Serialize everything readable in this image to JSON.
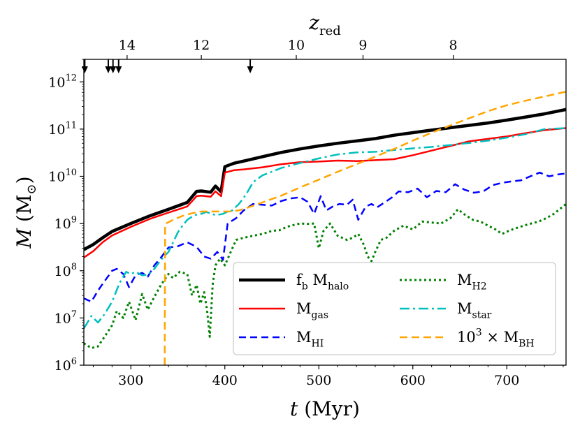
{
  "chart_data": {
    "type": "line",
    "xlabel": "t (Myr)",
    "ylabel": "M (M⊙)",
    "top_xlabel": "z_red",
    "xlim": [
      250,
      763
    ],
    "ylog": true,
    "ylim": [
      1000000.0,
      3000000000000.0
    ],
    "x_ticks": [
      300,
      400,
      500,
      600,
      700
    ],
    "x_tick_labels": [
      "300",
      "400",
      "500",
      "600",
      "700"
    ],
    "y_ticks": [
      1000000.0,
      10000000.0,
      100000000.0,
      1000000000.0,
      10000000000.0,
      100000000000.0,
      1000000000000.0
    ],
    "y_tick_labels": [
      "10^6",
      "10^7",
      "10^8",
      "10^9",
      "10^10",
      "10^11",
      "10^12"
    ],
    "top_ticks": [
      {
        "t": 296,
        "label": "14"
      },
      {
        "t": 375,
        "label": "12"
      },
      {
        "t": 476,
        "label": "10"
      },
      {
        "t": 547,
        "label": "9"
      },
      {
        "t": 643,
        "label": "8"
      }
    ],
    "arrow_times": [
      251,
      276,
      281,
      287,
      427
    ],
    "legend_position": "lower-right",
    "series": [
      {
        "name": "fb_M_halo",
        "legend": "f_b M_halo",
        "color": "#000000",
        "dash": "solid",
        "width": 4.5,
        "x": [
          250,
          260,
          270,
          280,
          300,
          320,
          340,
          360,
          370,
          375,
          385,
          390,
          396,
          400,
          410,
          420,
          440,
          460,
          480,
          500,
          520,
          540,
          560,
          580,
          600,
          620,
          640,
          660,
          680,
          700,
          720,
          740,
          763
        ],
        "y": [
          280000000.0,
          360000000.0,
          500000000.0,
          680000000.0,
          1000000000.0,
          1450000000.0,
          2000000000.0,
          2800000000.0,
          4800000000.0,
          4900000000.0,
          4600000000.0,
          6200000000.0,
          4700000000.0,
          16000000000.0,
          19000000000.0,
          21000000000.0,
          26000000000.0,
          32000000000.0,
          38000000000.0,
          44000000000.0,
          50000000000.0,
          56000000000.0,
          63000000000.0,
          74000000000.0,
          84000000000.0,
          95000000000.0,
          107000000000.0,
          120000000000.0,
          135000000000.0,
          155000000000.0,
          180000000000.0,
          210000000000.0,
          260000000000.0
        ]
      },
      {
        "name": "M_gas",
        "legend": "M_gas",
        "color": "#ff0000",
        "dash": "solid",
        "width": 2.5,
        "x": [
          250,
          260,
          270,
          280,
          300,
          320,
          340,
          360,
          370,
          375,
          385,
          390,
          396,
          400,
          410,
          420,
          440,
          460,
          480,
          500,
          520,
          540,
          560,
          580,
          600,
          620,
          640,
          660,
          680,
          700,
          720,
          740,
          763
        ],
        "y": [
          190000000.0,
          260000000.0,
          400000000.0,
          560000000.0,
          850000000.0,
          1250000000.0,
          1700000000.0,
          2300000000.0,
          3800000000.0,
          3900000000.0,
          3700000000.0,
          4800000000.0,
          3800000000.0,
          12000000000.0,
          13500000000.0,
          14000000000.0,
          15500000000.0,
          18000000000.0,
          20000000000.0,
          20500000000.0,
          21500000000.0,
          21000000000.0,
          22000000000.0,
          23000000000.0,
          28000000000.0,
          35000000000.0,
          44000000000.0,
          55000000000.0,
          62000000000.0,
          70000000000.0,
          82000000000.0,
          95000000000.0,
          105000000000.0
        ]
      },
      {
        "name": "M_HI",
        "legend": "M_HI",
        "color": "#0000ff",
        "dash": "10,6",
        "width": 2.5,
        "x": [
          250,
          258,
          265,
          272,
          280,
          285,
          292,
          298,
          305,
          312,
          318,
          325,
          332,
          340,
          350,
          360,
          370,
          378,
          385,
          392,
          398,
          403,
          412,
          420,
          430,
          440,
          450,
          460,
          470,
          480,
          488,
          495,
          502,
          508,
          515,
          522,
          530,
          536,
          542,
          550,
          556,
          562,
          570,
          578,
          585,
          595,
          605,
          615,
          625,
          635,
          645,
          655,
          665,
          675,
          685,
          695,
          705,
          715,
          725,
          735,
          745,
          755,
          763
        ],
        "y": [
          26000000.0,
          22000000.0,
          38000000.0,
          60000000.0,
          100000000.0,
          110000000.0,
          85000000.0,
          45000000.0,
          80000000.0,
          90000000.0,
          75000000.0,
          130000000.0,
          190000000.0,
          310000000.0,
          330000000.0,
          400000000.0,
          320000000.0,
          200000000.0,
          180000000.0,
          250000000.0,
          170000000.0,
          1000000000.0,
          1300000000.0,
          1900000000.0,
          2600000000.0,
          2500000000.0,
          2400000000.0,
          3000000000.0,
          3400000000.0,
          3600000000.0,
          2900000000.0,
          1600000000.0,
          3800000000.0,
          1900000000.0,
          2300000000.0,
          2600000000.0,
          2500000000.0,
          3200000000.0,
          1200000000.0,
          2300000000.0,
          2600000000.0,
          2200000000.0,
          2800000000.0,
          3600000000.0,
          4800000000.0,
          4600000000.0,
          5500000000.0,
          3600000000.0,
          4900000000.0,
          4600000000.0,
          6800000000.0,
          5200000000.0,
          4500000000.0,
          4800000000.0,
          6500000000.0,
          7300000000.0,
          7800000000.0,
          8200000000.0,
          10000000000.0,
          12000000000.0,
          10000000000.0,
          11000000000.0,
          11500000000.0
        ]
      },
      {
        "name": "M_H2",
        "legend": "M_H2",
        "color": "#008000",
        "dash": "3,4",
        "width": 3,
        "x": [
          250,
          258,
          265,
          272,
          280,
          285,
          292,
          298,
          305,
          312,
          318,
          325,
          332,
          340,
          345,
          352,
          360,
          365,
          370,
          374,
          378,
          381,
          384,
          387,
          390,
          395,
          400,
          405,
          412,
          420,
          430,
          440,
          450,
          458,
          466,
          475,
          480,
          488,
          495,
          500,
          505,
          512,
          520,
          530,
          536,
          542,
          548,
          552,
          556,
          560,
          566,
          572,
          580,
          590,
          600,
          610,
          620,
          630,
          640,
          648,
          656,
          664,
          672,
          680,
          688,
          695,
          702,
          710,
          718,
          726,
          734,
          742,
          750,
          756,
          763
        ],
        "y": [
          2900000.0,
          2300000.0,
          2500000.0,
          4000000.0,
          7000000.0,
          14000000.0,
          10000000.0,
          22000000.0,
          9000000.0,
          32000000.0,
          15000000.0,
          28000000.0,
          50000000.0,
          85000000.0,
          70000000.0,
          95000000.0,
          85000000.0,
          30000000.0,
          50000000.0,
          20000000.0,
          35000000.0,
          15000000.0,
          4000000.0,
          50000000.0,
          130000000.0,
          180000000.0,
          130000000.0,
          220000000.0,
          450000000.0,
          500000000.0,
          550000000.0,
          600000000.0,
          700000000.0,
          720000000.0,
          850000000.0,
          950000000.0,
          1000000000.0,
          980000000.0,
          1000000000.0,
          300000000.0,
          700000000.0,
          1000000000.0,
          550000000.0,
          450000000.0,
          500000000.0,
          600000000.0,
          350000000.0,
          200000000.0,
          160000000.0,
          250000000.0,
          450000000.0,
          500000000.0,
          700000000.0,
          900000000.0,
          750000000.0,
          1100000000.0,
          1050000000.0,
          1000000000.0,
          1300000000.0,
          2000000000.0,
          1500000000.0,
          1200000000.0,
          1100000000.0,
          900000000.0,
          750000000.0,
          600000000.0,
          700000000.0,
          800000000.0,
          900000000.0,
          1000000000.0,
          1100000000.0,
          1300000000.0,
          1600000000.0,
          2000000000.0,
          2600000000.0
        ]
      },
      {
        "name": "M_star",
        "legend": "M_star",
        "color": "#00bfbf",
        "dash": "14,5,3,5",
        "width": 2.5,
        "x": [
          250,
          258,
          265,
          272,
          280,
          288,
          295,
          300,
          305,
          312,
          318,
          325,
          332,
          340,
          345,
          350,
          355,
          360,
          365,
          370,
          375,
          380,
          385,
          390,
          394,
          398,
          402,
          408,
          415,
          420,
          425,
          430,
          440,
          450,
          460,
          475,
          500,
          520,
          540,
          560,
          580,
          600,
          620,
          640,
          660,
          680,
          700,
          720,
          740,
          763
        ],
        "y": [
          6000000.0,
          11000000.0,
          8000000.0,
          12000000.0,
          22000000.0,
          55000000.0,
          95000000.0,
          85000000.0,
          95000000.0,
          80000000.0,
          82000000.0,
          110000000.0,
          170000000.0,
          250000000.0,
          400000000.0,
          650000000.0,
          900000000.0,
          1200000000.0,
          1400000000.0,
          1550000000.0,
          1600000000.0,
          1750000000.0,
          1650000000.0,
          1500000000.0,
          1550000000.0,
          1600000000.0,
          1750000000.0,
          1900000000.0,
          2600000000.0,
          3500000000.0,
          5000000000.0,
          7500000000.0,
          10500000000.0,
          12500000000.0,
          15000000000.0,
          18000000000.0,
          24000000000.0,
          29000000000.0,
          32000000000.0,
          33000000000.0,
          36000000000.0,
          39000000000.0,
          42000000000.0,
          46000000000.0,
          51000000000.0,
          57000000000.0,
          66000000000.0,
          78000000000.0,
          100000000000.0,
          105000000000.0
        ]
      },
      {
        "name": "M_BH_x1000",
        "legend": "10^3 × M_BH",
        "color": "#ffa500",
        "dash": "11,6",
        "width": 2.5,
        "x": [
          336,
          336.5,
          345,
          355,
          365,
          375,
          395,
          405,
          415,
          425,
          440,
          460,
          480,
          500,
          520,
          540,
          560,
          580,
          600,
          620,
          640,
          660,
          680,
          700,
          720,
          740,
          763
        ],
        "y": [
          1000000.0,
          980000000.0,
          1200000000.0,
          1450000000.0,
          1650000000.0,
          1800000000.0,
          1800000000.0,
          1800000000.0,
          1900000000.0,
          2200000000.0,
          2800000000.0,
          3900000000.0,
          5800000000.0,
          8500000000.0,
          12500000000.0,
          18000000000.0,
          26000000000.0,
          38000000000.0,
          57000000000.0,
          84000000000.0,
          120000000000.0,
          170000000000.0,
          240000000000.0,
          320000000000.0,
          400000000000.0,
          490000000000.0,
          620000000000.0
        ]
      }
    ]
  }
}
